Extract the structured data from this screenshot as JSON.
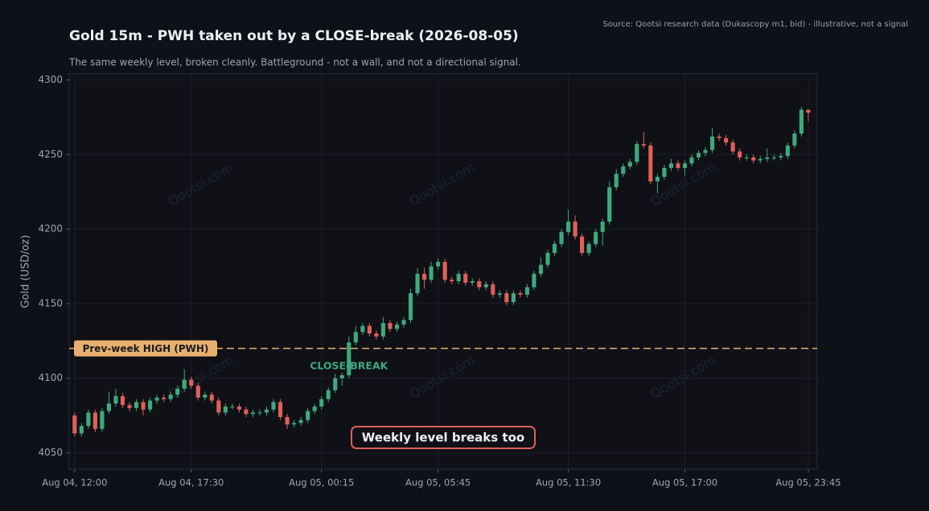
{
  "chart_data": {
    "type": "candlestick",
    "title": "Gold 15m - PWH taken out by a CLOSE-break (2026-08-05)",
    "subtitle": "The same weekly level, broken cleanly. Battleground - not a wall, and not a directional signal.",
    "source": "Source: Qootsi research data (Dukascopy m1, bid) - illustrative, not a signal",
    "y_label": "Gold (USD/oz)",
    "watermark": "Qootsi.com",
    "up_color": "#3fa97e",
    "down_color": "#e0605a",
    "open": [
      4075,
      4063,
      4068,
      4077,
      4066,
      4078,
      4083,
      4088,
      4082,
      4080,
      4084,
      4079,
      4085,
      4087,
      4086,
      4089,
      4093,
      4099,
      4095,
      4087,
      4089,
      4085,
      4077,
      4081,
      4081,
      4079,
      4076,
      4077,
      4077,
      4079,
      4084,
      4074,
      4069,
      4070,
      4072,
      4078,
      4081,
      4086,
      4092,
      4100,
      4102,
      4124,
      4131,
      4135,
      4130,
      4128,
      4137,
      4133,
      4136,
      4139,
      4157,
      4170,
      4166,
      4175,
      4178,
      4166,
      4165,
      4170,
      4164,
      4165,
      4161,
      4163,
      4156,
      4157,
      4151,
      4157,
      4156,
      4161,
      4170,
      4176,
      4184,
      4190,
      4198,
      4205,
      4195,
      4184,
      4190,
      4198,
      4205,
      4228,
      4237,
      4242,
      4245,
      4257,
      4256,
      4232,
      4235,
      4241,
      4244,
      4241,
      4244,
      4248,
      4251,
      4253,
      4262,
      4261,
      4258,
      4252,
      4248,
      4248,
      4246,
      4247,
      4248,
      4248,
      4249,
      4256,
      4264,
      4280
    ],
    "high": [
      4077,
      4070,
      4079,
      4079,
      4080,
      4091,
      4093,
      4090,
      4084,
      4086,
      4086,
      4087,
      4089,
      4089,
      4091,
      4095,
      4106,
      4101,
      4097,
      4091,
      4091,
      4087,
      4083,
      4083,
      4083,
      4081,
      4079,
      4079,
      4081,
      4086,
      4086,
      4076,
      4072,
      4074,
      4080,
      4083,
      4088,
      4094,
      4103,
      4104,
      4128,
      4135,
      4137,
      4137,
      4132,
      4141,
      4139,
      4138,
      4141,
      4160,
      4174,
      4174,
      4178,
      4180,
      4180,
      4168,
      4172,
      4172,
      4167,
      4167,
      4165,
      4165,
      4159,
      4159,
      4159,
      4159,
      4163,
      4172,
      4181,
      4186,
      4192,
      4200,
      4213,
      4209,
      4197,
      4192,
      4200,
      4207,
      4232,
      4240,
      4244,
      4247,
      4259,
      4265,
      4258,
      4237,
      4243,
      4247,
      4246,
      4246,
      4250,
      4253,
      4255,
      4268,
      4264,
      4263,
      4260,
      4254,
      4250,
      4250,
      4249,
      4254,
      4250,
      4251,
      4258,
      4266,
      4282,
      4280
    ],
    "low": [
      4061,
      4061,
      4066,
      4064,
      4064,
      4076,
      4081,
      4080,
      4078,
      4078,
      4075,
      4077,
      4083,
      4084,
      4084,
      4087,
      4091,
      4093,
      4085,
      4085,
      4083,
      4075,
      4075,
      4079,
      4077,
      4074,
      4074,
      4075,
      4075,
      4077,
      4072,
      4066,
      4067,
      4068,
      4070,
      4076,
      4079,
      4084,
      4090,
      4095,
      4100,
      4122,
      4129,
      4128,
      4126,
      4126,
      4131,
      4131,
      4134,
      4137,
      4155,
      4160,
      4164,
      4173,
      4164,
      4163,
      4163,
      4162,
      4162,
      4159,
      4159,
      4154,
      4154,
      4149,
      4149,
      4154,
      4154,
      4159,
      4168,
      4174,
      4182,
      4188,
      4196,
      4193,
      4182,
      4182,
      4188,
      4189,
      4203,
      4226,
      4235,
      4240,
      4243,
      4254,
      4230,
      4224,
      4233,
      4239,
      4239,
      4236,
      4242,
      4246,
      4249,
      4251,
      4259,
      4256,
      4250,
      4246,
      4246,
      4244,
      4244,
      4245,
      4246,
      4246,
      4247,
      4254,
      4262,
      4272
    ],
    "close": [
      4063,
      4068,
      4077,
      4066,
      4078,
      4083,
      4088,
      4082,
      4080,
      4084,
      4079,
      4085,
      4087,
      4086,
      4089,
      4093,
      4099,
      4095,
      4087,
      4089,
      4085,
      4077,
      4081,
      4081,
      4079,
      4076,
      4077,
      4077,
      4079,
      4084,
      4074,
      4069,
      4070,
      4072,
      4078,
      4081,
      4086,
      4092,
      4100,
      4102,
      4124,
      4131,
      4135,
      4130,
      4128,
      4137,
      4133,
      4136,
      4139,
      4157,
      4170,
      4166,
      4175,
      4178,
      4166,
      4165,
      4170,
      4164,
      4165,
      4161,
      4163,
      4156,
      4157,
      4151,
      4157,
      4156,
      4161,
      4170,
      4176,
      4184,
      4190,
      4198,
      4205,
      4195,
      4184,
      4190,
      4198,
      4205,
      4228,
      4237,
      4242,
      4245,
      4257,
      4256,
      4232,
      4235,
      4241,
      4244,
      4241,
      4244,
      4248,
      4251,
      4253,
      4262,
      4261,
      4258,
      4252,
      4248,
      4248,
      4246,
      4247,
      4248,
      4248,
      4249,
      4256,
      4264,
      4280,
      4278
    ],
    "xlim": [
      -0.8,
      108.3
    ],
    "xticks": [
      {
        "value": 0,
        "label": "Aug 04, 12:00"
      },
      {
        "value": 17,
        "label": "Aug 04, 17:30"
      },
      {
        "value": 36,
        "label": "Aug 05, 00:15"
      },
      {
        "value": 53,
        "label": "Aug 05, 05:45"
      },
      {
        "value": 72,
        "label": "Aug 05, 11:30"
      },
      {
        "value": 89,
        "label": "Aug 05, 17:00"
      },
      {
        "value": 107,
        "label": "Aug 05, 23:45"
      }
    ],
    "ylim": [
      4039,
      4304
    ],
    "yticks": [
      4050,
      4100,
      4150,
      4200,
      4250,
      4300
    ],
    "grid": true,
    "level": {
      "value": 4120,
      "label": "Prev-week HIGH (PWH)",
      "color": "#e8b06e"
    },
    "break_label": {
      "text": "CLOSE-BREAK",
      "x": 40,
      "y": 4108
    },
    "callout": "Weekly level breaks too"
  }
}
